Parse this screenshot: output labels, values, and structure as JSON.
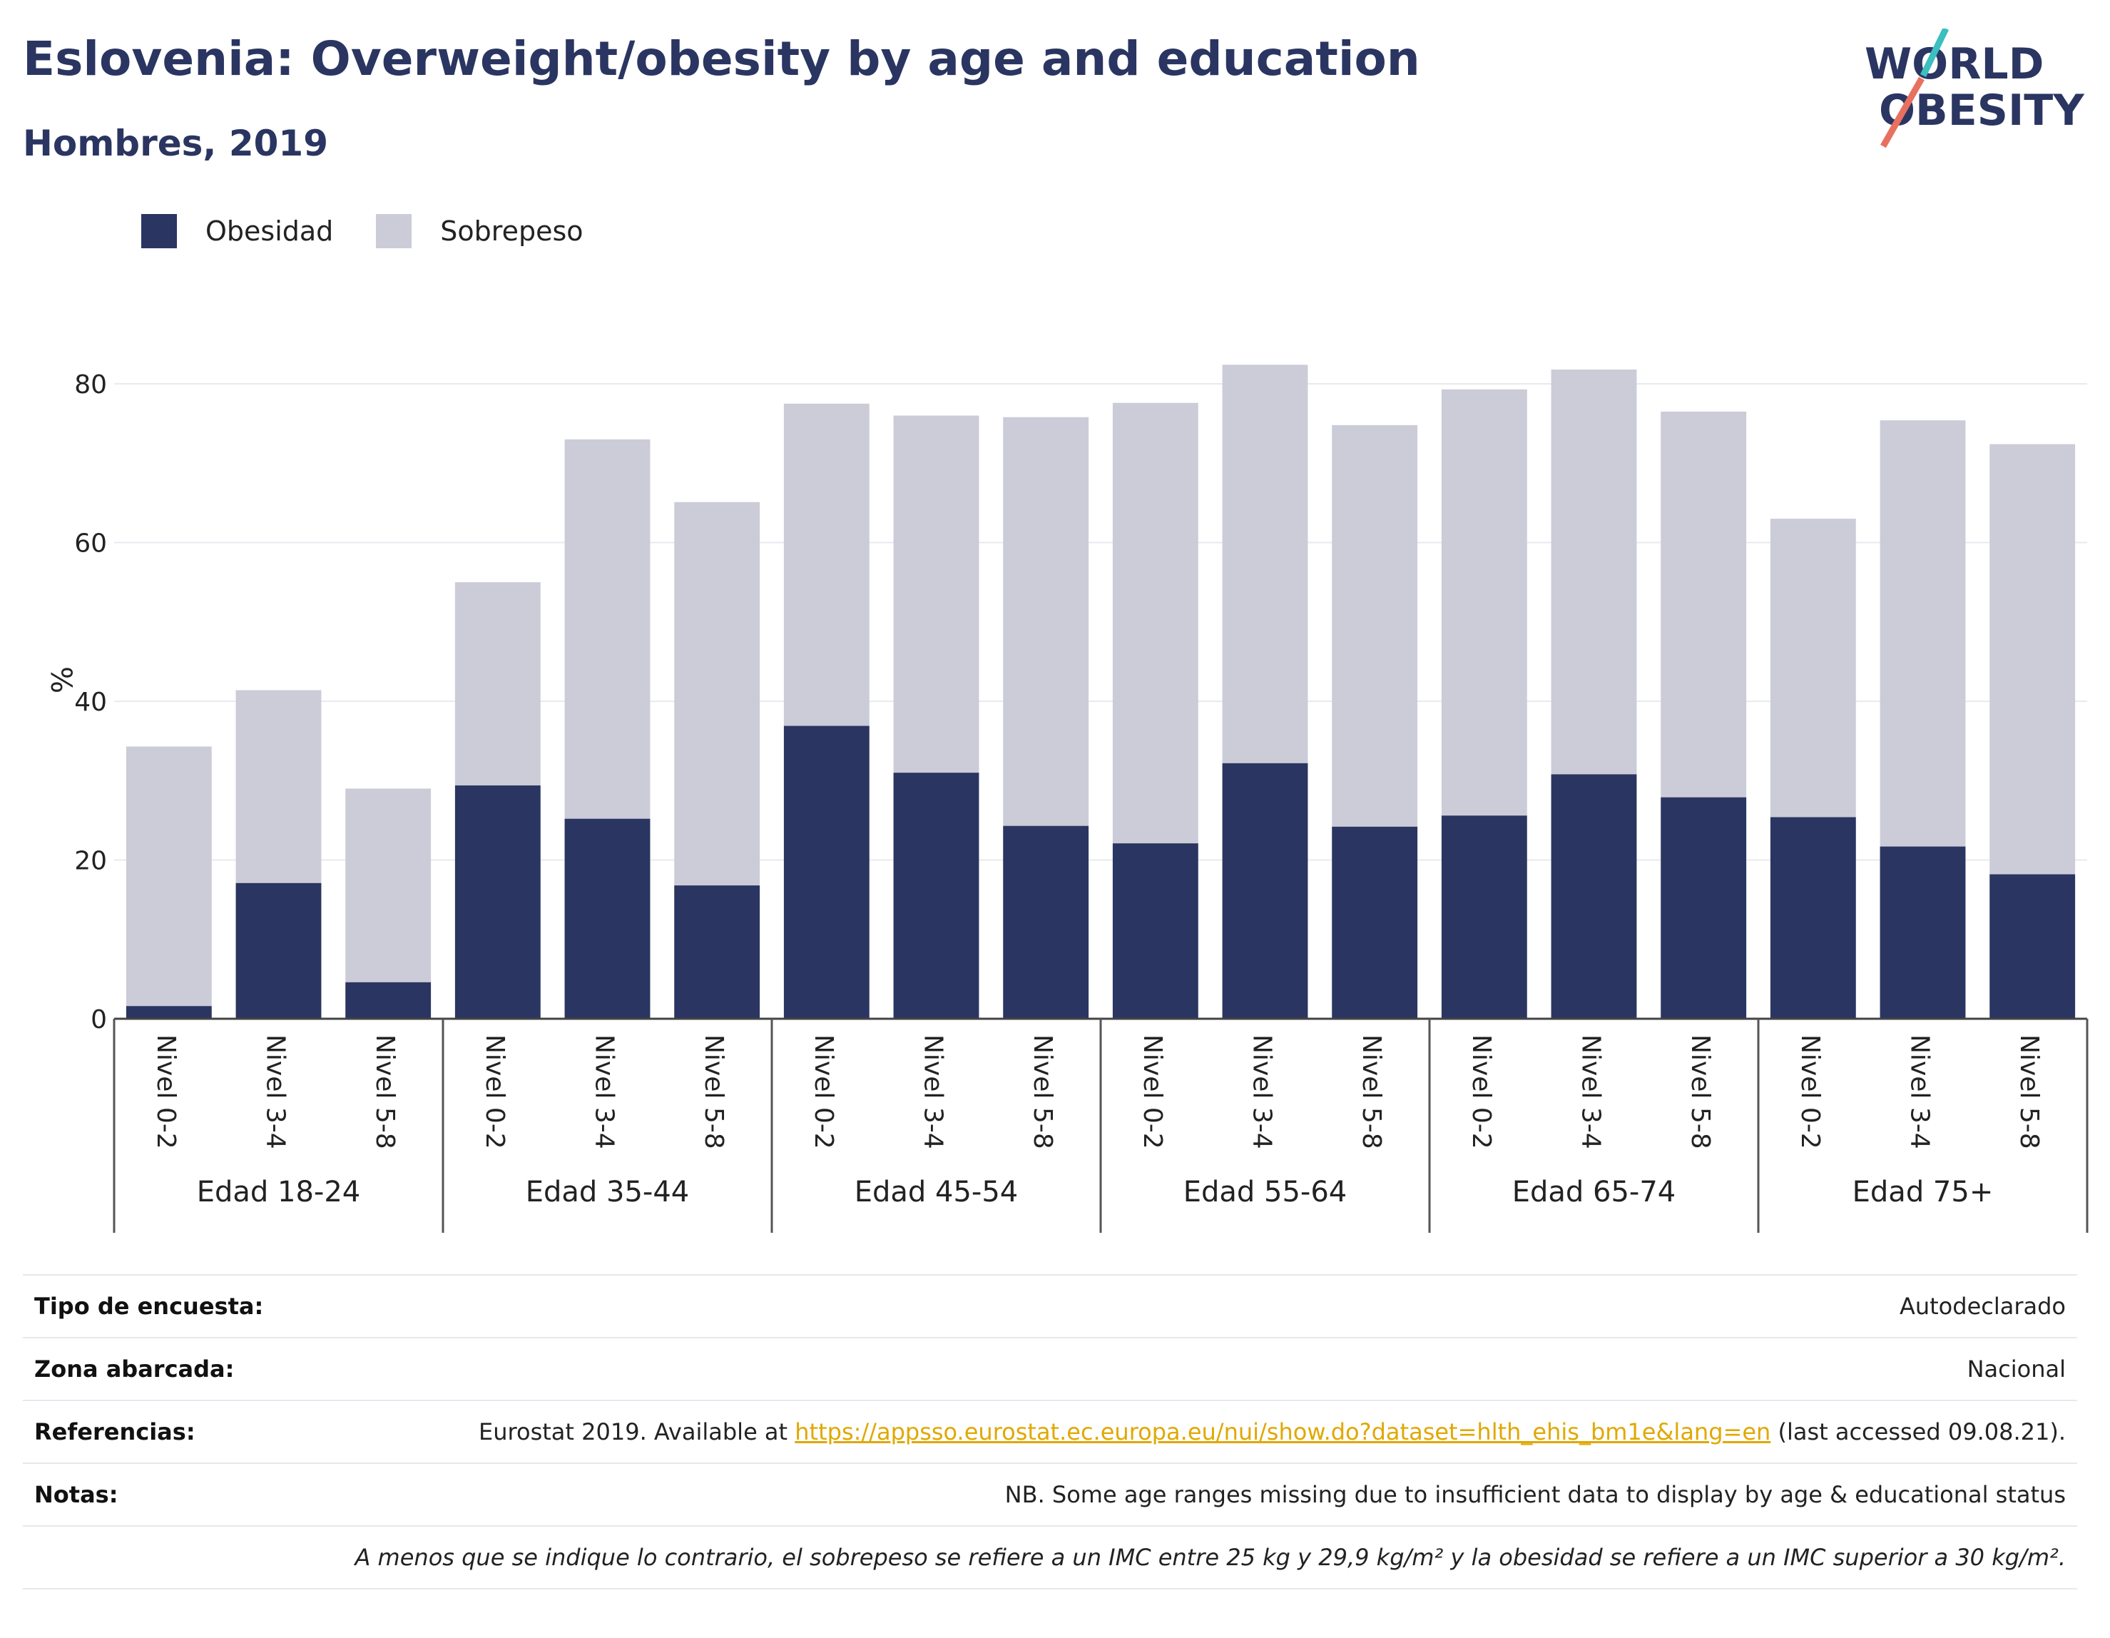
{
  "header": {
    "title": "Eslovenia: Overweight/obesity by age and education",
    "subtitle": "Hombres, 2019"
  },
  "logo": {
    "line1": "WORLD",
    "line2": "OBESITY",
    "icon": "world-obesity-logo"
  },
  "legend": {
    "items": [
      "Obesidad",
      "Sobrepeso"
    ]
  },
  "colors": {
    "obesity": "#2a3561",
    "overweight": "#cbccd8",
    "accent_teal": "#3bbfbf",
    "accent_coral": "#e8705f",
    "link": "#e0a800"
  },
  "chart_data": {
    "type": "bar",
    "stacked": true,
    "ylabel": "%",
    "ylim": [
      0,
      90
    ],
    "yticks": [
      0,
      20,
      40,
      60,
      80
    ],
    "grid": true,
    "legend_position": "top-left",
    "groups": [
      "Edad 18-24",
      "Edad 35-44",
      "Edad 45-54",
      "Edad 55-64",
      "Edad 65-74",
      "Edad 75+"
    ],
    "levels": [
      "Nivel 0-2",
      "Nivel 3-4",
      "Nivel 5-8"
    ],
    "series": [
      {
        "name": "Obesidad",
        "values": [
          [
            1.6,
            17.1,
            4.6
          ],
          [
            29.4,
            25.2,
            16.8
          ],
          [
            36.9,
            31.0,
            24.3
          ],
          [
            22.1,
            32.2,
            24.2
          ],
          [
            25.6,
            30.8,
            27.9
          ],
          [
            25.4,
            21.7,
            18.2
          ]
        ]
      },
      {
        "name": "Sobrepeso",
        "values": [
          [
            32.7,
            24.3,
            24.4
          ],
          [
            25.6,
            47.8,
            48.3
          ],
          [
            40.6,
            45.0,
            51.5
          ],
          [
            55.5,
            50.2,
            50.6
          ],
          [
            53.7,
            51.0,
            48.6
          ],
          [
            37.6,
            53.7,
            54.2
          ]
        ]
      }
    ]
  },
  "info": {
    "survey_label": "Tipo de encuesta:",
    "survey_value": "Autodeclarado",
    "zone_label": "Zona abarcada:",
    "zone_value": "Nacional",
    "ref_label": "Referencias:",
    "ref_prefix": "Eurostat 2019. Available at ",
    "ref_link": "https://appsso.eurostat.ec.europa.eu/nui/show.do?dataset=hlth_ehis_bm1e&lang=en",
    "ref_suffix": " (last accessed 09.08.21).",
    "notes_label": "Notas:",
    "notes_value": "NB. Some age ranges missing due to insufficient data to display by age & educational status",
    "footnote": "A menos que se indique lo contrario, el sobrepeso se refiere a un IMC entre 25 kg y 29,9 kg/m² y la obesidad se refiere a un IMC superior a 30 kg/m²."
  }
}
